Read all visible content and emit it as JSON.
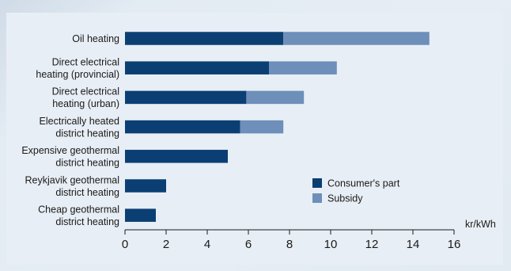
{
  "chart_data": {
    "type": "bar",
    "orientation": "horizontal",
    "stacked": true,
    "categories": [
      [
        "Oil heating"
      ],
      [
        "Direct electrical",
        "heating (provincial)"
      ],
      [
        "Direct electrical",
        "heating (urban)"
      ],
      [
        "Electrically heated",
        "district heating"
      ],
      [
        "Expensive geothermal",
        "district heating"
      ],
      [
        "Reykjavik geothermal",
        "district heating"
      ],
      [
        "Cheap geothermal",
        "district heating"
      ]
    ],
    "series": [
      {
        "name": "Consumer's part",
        "color": "#0b3f73",
        "values": [
          7.7,
          7.0,
          5.9,
          5.6,
          5.0,
          2.0,
          1.5
        ]
      },
      {
        "name": "Subsidy",
        "color": "#6d8fba",
        "values": [
          7.1,
          3.3,
          2.8,
          2.1,
          0,
          0,
          0
        ]
      }
    ],
    "xlabel": "kr/kWh",
    "xlim": [
      0,
      16
    ],
    "xticks": [
      0,
      2,
      4,
      6,
      8,
      10,
      12,
      14,
      16
    ],
    "grid": false,
    "legend_position": "lower-right"
  }
}
